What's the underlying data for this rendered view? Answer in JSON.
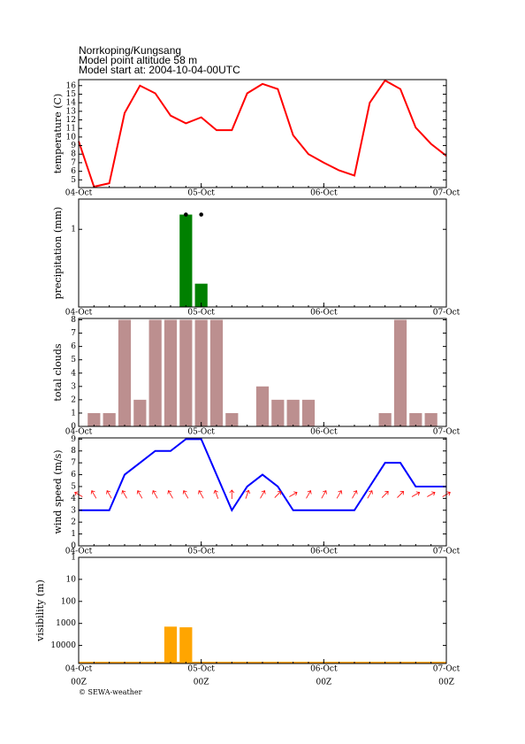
{
  "header": {
    "lines": [
      "Norrkoping/Kungsang",
      "Model point altitude  58 m",
      "Model start at: 2004-10-04-00UTC"
    ]
  },
  "footer": "© SEWA-weather",
  "chart_data": [
    {
      "type": "line",
      "ylabel": "temperature (C)",
      "color": "#ff0000",
      "x": [
        0,
        3,
        6,
        9,
        12,
        15,
        18,
        21,
        24,
        27,
        30,
        33,
        36,
        39,
        42,
        45,
        48,
        51,
        54,
        57,
        60,
        63,
        66,
        69,
        72
      ],
      "values": [
        9.5,
        4.2,
        4.6,
        12.8,
        16.0,
        15.1,
        12.5,
        11.6,
        12.3,
        10.8,
        10.8,
        15.1,
        16.2,
        15.6,
        10.2,
        8.0,
        7.0,
        6.1,
        5.5,
        14.0,
        16.6,
        15.6,
        11.1,
        9.2,
        7.8
      ],
      "xlim": [
        0,
        72
      ],
      "xticks": [
        {
          "value": 0,
          "label": "04-Oct"
        },
        {
          "value": 24,
          "label": "05-Oct"
        },
        {
          "value": 48,
          "label": "06-Oct"
        },
        {
          "value": 72,
          "label": "07-Oct"
        }
      ],
      "ylim": [
        4.1,
        16.7
      ],
      "yticks": [
        5,
        6,
        7,
        8,
        9,
        10,
        11,
        12,
        13,
        14,
        15,
        16
      ]
    },
    {
      "type": "bar",
      "ylabel": "precipitation (mm)",
      "color": "#008000",
      "x": [
        21,
        24
      ],
      "values": [
        1.19,
        0.3
      ],
      "marker_values": [
        1.19,
        1.19
      ],
      "xlim": [
        0,
        72
      ],
      "xticks": [
        {
          "value": 0,
          "label": "04-Oct"
        },
        {
          "value": 24,
          "label": "05-Oct"
        },
        {
          "value": 48,
          "label": "06-Oct"
        },
        {
          "value": 72,
          "label": "07-Oct"
        }
      ],
      "ylim": [
        0,
        1.39
      ],
      "yticks": [
        1
      ]
    },
    {
      "type": "bar",
      "ylabel": "total clouds",
      "color": "#bc8f8f",
      "x": [
        3,
        6,
        9,
        12,
        15,
        18,
        21,
        24,
        27,
        30,
        33,
        36,
        39,
        42,
        45,
        48,
        51,
        54,
        57,
        60,
        63,
        66,
        69
      ],
      "values": [
        1,
        1,
        8,
        2,
        8,
        8,
        8,
        8,
        8,
        1,
        0,
        3,
        2,
        2,
        2,
        0,
        0,
        0,
        0,
        1,
        8,
        1,
        1
      ],
      "xlim": [
        0,
        72
      ],
      "xticks": [
        {
          "value": 0,
          "label": "04-Oct"
        },
        {
          "value": 24,
          "label": "05-Oct"
        },
        {
          "value": 48,
          "label": "06-Oct"
        },
        {
          "value": 72,
          "label": "07-Oct"
        }
      ],
      "ylim": [
        0,
        8.1
      ],
      "yticks": [
        0,
        1,
        2,
        3,
        4,
        5,
        6,
        7,
        8
      ]
    },
    {
      "type": "line",
      "ylabel": "wind speed (m/s)",
      "color": "#0000ff",
      "arrow_color": "#ff0000",
      "x": [
        0,
        3,
        6,
        9,
        12,
        15,
        18,
        21,
        24,
        27,
        30,
        33,
        36,
        39,
        42,
        45,
        48,
        51,
        54,
        57,
        60,
        63,
        66,
        69,
        72
      ],
      "values": [
        3,
        3,
        3,
        6,
        7,
        8,
        8,
        9,
        9,
        6,
        3,
        5,
        6,
        5,
        3,
        3,
        3,
        3,
        3,
        5,
        7,
        7,
        5,
        5,
        5
      ],
      "direction": [
        -60,
        -30,
        -30,
        -30,
        -30,
        -30,
        -30,
        -30,
        -30,
        -20,
        0,
        20,
        30,
        45,
        60,
        30,
        30,
        30,
        30,
        30,
        45,
        45,
        60,
        60,
        60
      ],
      "xlim": [
        0,
        72
      ],
      "xticks": [
        {
          "value": 0,
          "label": "04-Oct"
        },
        {
          "value": 24,
          "label": "05-Oct"
        },
        {
          "value": 48,
          "label": "06-Oct"
        },
        {
          "value": 72,
          "label": "07-Oct"
        }
      ],
      "ylim": [
        0,
        9.1
      ],
      "yticks": [
        0,
        1,
        2,
        3,
        4,
        5,
        6,
        7,
        8,
        9
      ]
    },
    {
      "type": "bar",
      "ylabel": "visibility (m)",
      "color": "#ffa500",
      "log": true,
      "x": [
        18,
        21
      ],
      "values": [
        1400,
        1500
      ],
      "xlim": [
        0,
        72
      ],
      "xticks": [
        {
          "value": 0,
          "label": "04-Oct"
        },
        {
          "value": 24,
          "label": "05-Oct"
        },
        {
          "value": 48,
          "label": "06-Oct"
        },
        {
          "value": 72,
          "label": "07-Oct"
        }
      ],
      "xtick_sublabels": [
        "00Z",
        "00Z",
        "00Z",
        "00Z"
      ],
      "ylim": [
        66000,
        1
      ],
      "yticks": [
        1,
        10,
        100,
        1000,
        10000
      ]
    }
  ]
}
